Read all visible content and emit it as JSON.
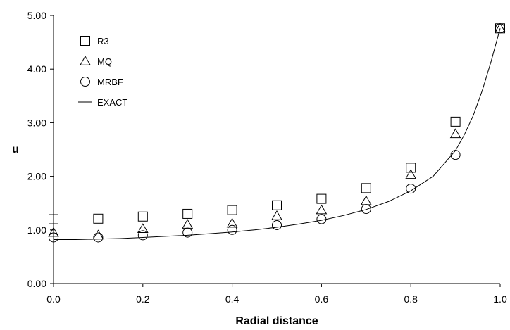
{
  "chart_data": {
    "type": "scatter",
    "title": "",
    "xlabel": "Radial distance",
    "ylabel": "u",
    "xlim": [
      0.0,
      1.0
    ],
    "ylim": [
      0.0,
      5.0
    ],
    "x_ticks": [
      "0.0",
      "0.2",
      "0.4",
      "0.6",
      "0.8",
      "1.0"
    ],
    "y_ticks": [
      "0.00",
      "1.00",
      "2.00",
      "3.00",
      "4.00",
      "5.00"
    ],
    "grid": false,
    "legend_position": "top-left",
    "series": [
      {
        "name": "R3",
        "marker": "square",
        "x": [
          0.0,
          0.1,
          0.2,
          0.3,
          0.4,
          0.5,
          0.6,
          0.7,
          0.8,
          0.9,
          1.0
        ],
        "y": [
          1.2,
          1.21,
          1.25,
          1.3,
          1.37,
          1.46,
          1.58,
          1.78,
          2.16,
          3.02,
          4.76
        ]
      },
      {
        "name": "MQ",
        "marker": "triangle",
        "x": [
          0.0,
          0.1,
          0.2,
          0.3,
          0.4,
          0.5,
          0.6,
          0.7,
          0.8,
          0.9,
          1.0
        ],
        "y": [
          0.95,
          0.9,
          1.02,
          1.1,
          1.12,
          1.26,
          1.37,
          1.54,
          2.03,
          2.79,
          4.76
        ]
      },
      {
        "name": "MRBF",
        "marker": "circle",
        "x": [
          0.0,
          0.1,
          0.2,
          0.3,
          0.4,
          0.5,
          0.6,
          0.7,
          0.8,
          0.9,
          1.0
        ],
        "y": [
          0.86,
          0.86,
          0.9,
          0.95,
          1.0,
          1.09,
          1.2,
          1.39,
          1.77,
          2.4,
          4.76
        ]
      },
      {
        "name": "EXACT",
        "marker": "line",
        "x": [
          0.0,
          0.05,
          0.1,
          0.15,
          0.2,
          0.25,
          0.3,
          0.35,
          0.4,
          0.45,
          0.5,
          0.55,
          0.6,
          0.65,
          0.7,
          0.75,
          0.8,
          0.85,
          0.9,
          0.92,
          0.94,
          0.96,
          0.98,
          1.0
        ],
        "y": [
          0.82,
          0.82,
          0.83,
          0.84,
          0.86,
          0.88,
          0.9,
          0.93,
          0.96,
          1.0,
          1.05,
          1.11,
          1.18,
          1.27,
          1.38,
          1.53,
          1.73,
          2.0,
          2.48,
          2.78,
          3.14,
          3.6,
          4.15,
          4.76
        ]
      }
    ]
  }
}
